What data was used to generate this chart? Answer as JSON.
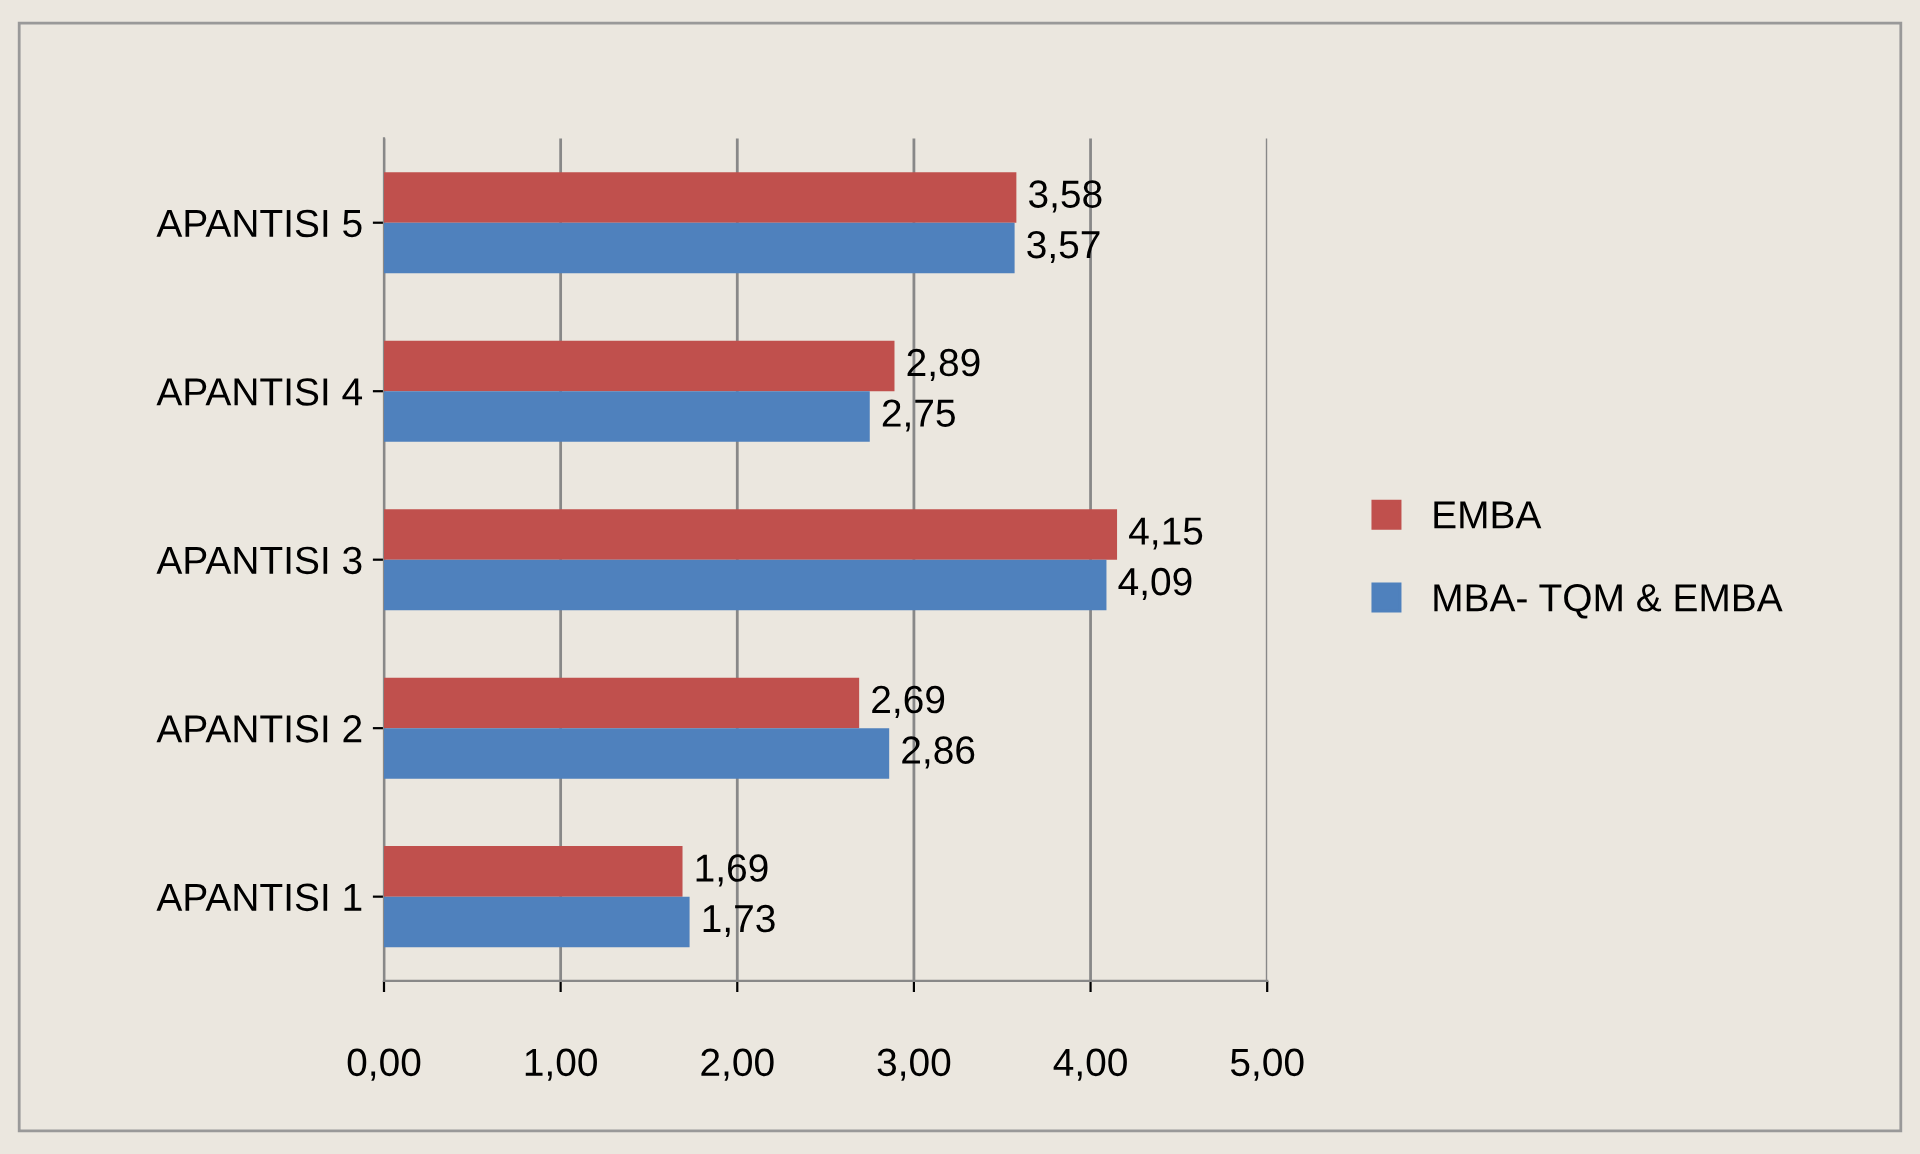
{
  "chart_data": {
    "type": "bar",
    "orientation": "horizontal",
    "categories": [
      "APANTISI 5",
      "APANTISI 4",
      "APANTISI 3",
      "APANTISI 2",
      "APANTISI 1"
    ],
    "series": [
      {
        "name": "EMBA",
        "color": "#c0504d",
        "values": [
          3.58,
          2.89,
          4.15,
          2.69,
          1.69
        ],
        "value_labels": [
          "3,58",
          "2,89",
          "4,15",
          "2,69",
          "1,69"
        ]
      },
      {
        "name": "MBA- TQM & EMBA",
        "color": "#4f81bd",
        "values": [
          3.57,
          2.75,
          4.09,
          2.86,
          1.73
        ],
        "value_labels": [
          "3,57",
          "2,75",
          "4,09",
          "2,86",
          "1,73"
        ]
      }
    ],
    "xlim": [
      0,
      5
    ],
    "xticks": [
      {
        "value": 0,
        "label": "0,00"
      },
      {
        "value": 1,
        "label": "1,00"
      },
      {
        "value": 2,
        "label": "2,00"
      },
      {
        "value": 3,
        "label": "3,00"
      },
      {
        "value": 4,
        "label": "4,00"
      },
      {
        "value": 5,
        "label": "5,00"
      }
    ],
    "grid": "x",
    "legend": "right"
  }
}
